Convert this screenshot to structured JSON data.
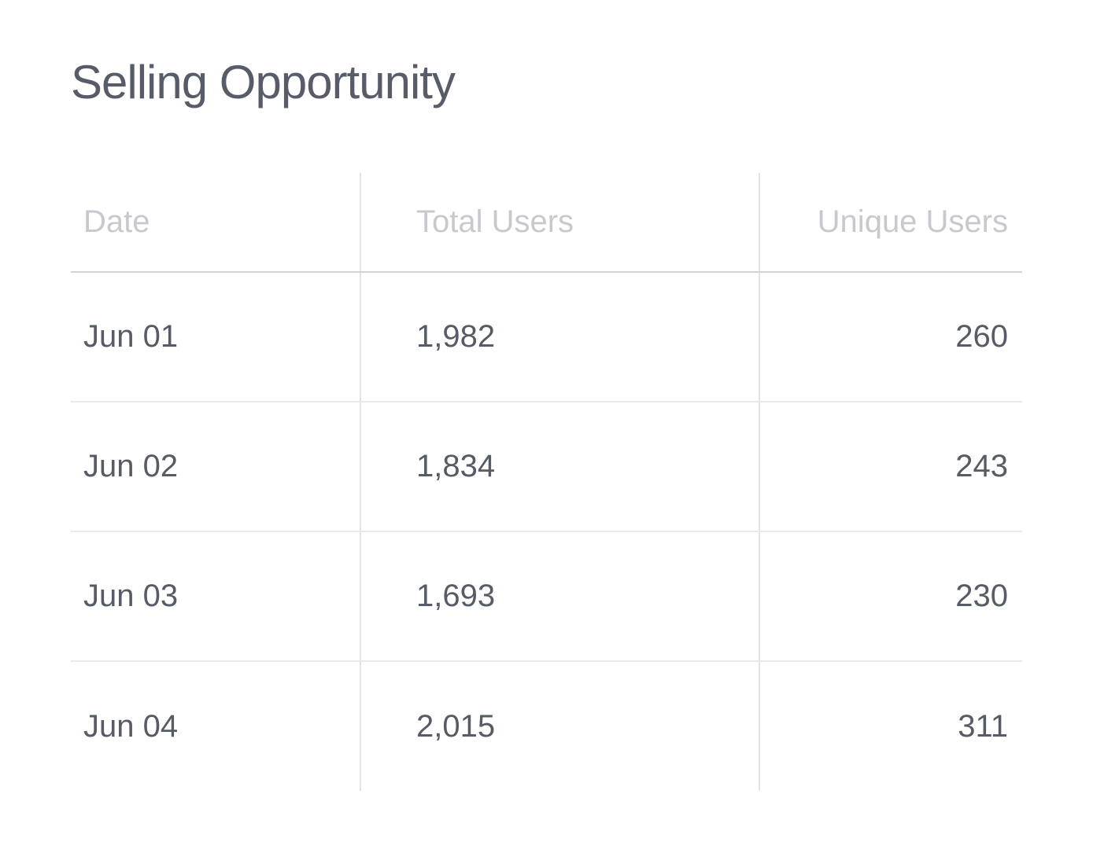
{
  "title": "Selling Opportunity",
  "table": {
    "columns": [
      "Date",
      "Total Users",
      "Unique Users"
    ],
    "rows": [
      {
        "date": "Jun 01",
        "total_users": "1,982",
        "unique_users": "260"
      },
      {
        "date": "Jun 02",
        "total_users": "1,834",
        "unique_users": "243"
      },
      {
        "date": "Jun 03",
        "total_users": "1,693",
        "unique_users": "230"
      },
      {
        "date": "Jun 04",
        "total_users": "2,015",
        "unique_users": "311"
      }
    ]
  },
  "chart_data": {
    "type": "table",
    "title": "Selling Opportunity",
    "columns": [
      "Date",
      "Total Users",
      "Unique Users"
    ],
    "rows": [
      [
        "Jun 01",
        1982,
        260
      ],
      [
        "Jun 02",
        1834,
        243
      ],
      [
        "Jun 03",
        1693,
        230
      ],
      [
        "Jun 04",
        2015,
        311
      ]
    ]
  },
  "colors": {
    "background": "#ffffff",
    "title_text": "#575c68",
    "header_text": "#c7c9cf",
    "cell_text": "#565b66",
    "header_border": "#d1d3d6",
    "row_border": "#e9e9ec",
    "column_divider": "#e2e3e6"
  }
}
